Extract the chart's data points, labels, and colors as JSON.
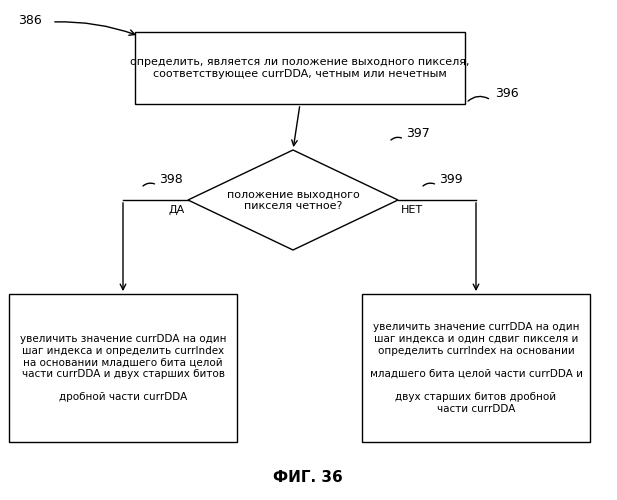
{
  "bg_color": "#ffffff",
  "title": "ФИГ. 36",
  "label_386": "386",
  "label_396": "396",
  "label_397": "397",
  "label_398": "398",
  "label_399": "399",
  "box_top_text": "определить, является ли положение выходного пикселя,\nсоответствующее currDDA, четным или нечетным",
  "diamond_text": "положение выходного\nпикселя четное?",
  "diamond_yes": "ДА",
  "diamond_no": "НЕТ",
  "box_left_text": "увеличить значение currDDA на один\nшаг индекса и определить currIndex\nна основании младшего бита целой\nчасти currDDA и двух старших битов\n\nдробной части currDDA",
  "box_right_text": "увеличить значение currDDA на один\nшаг индекса и один сдвиг пикселя и\nопределить currIndex на основании\n\nмладшего бита целой части currDDA и\n\nдвух старших битов дробной\nчасти currDDA"
}
